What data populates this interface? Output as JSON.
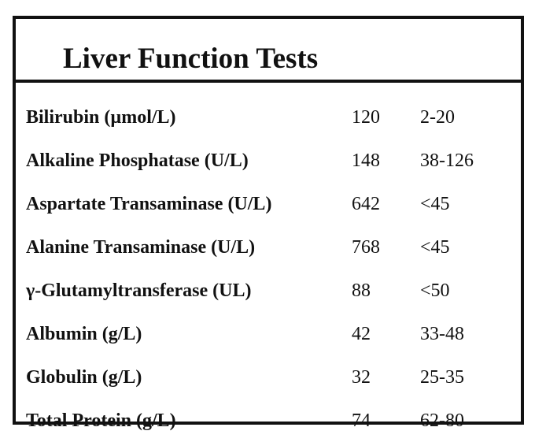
{
  "title": "Liver Function Tests",
  "rows": [
    {
      "name": "Bilirubin (µmol/L)",
      "value": "120",
      "range": "2-20"
    },
    {
      "name": "Alkaline Phosphatase (U/L)",
      "value": "148",
      "range": "38-126"
    },
    {
      "name": "Aspartate Transaminase (U/L)",
      "value": "642",
      "range": "<45"
    },
    {
      "name": "Alanine Transaminase (U/L)",
      "value": "768",
      "range": "<45"
    },
    {
      "name": "γ-Glutamyltransferase (UL)",
      "value": "88",
      "range": "<50"
    },
    {
      "name": "Albumin (g/L)",
      "value": "42",
      "range": "33-48"
    },
    {
      "name": "Globulin (g/L)",
      "value": "32",
      "range": "25-35"
    },
    {
      "name": "Total Protein (g/L)",
      "value": "74",
      "range": "62-80"
    }
  ]
}
